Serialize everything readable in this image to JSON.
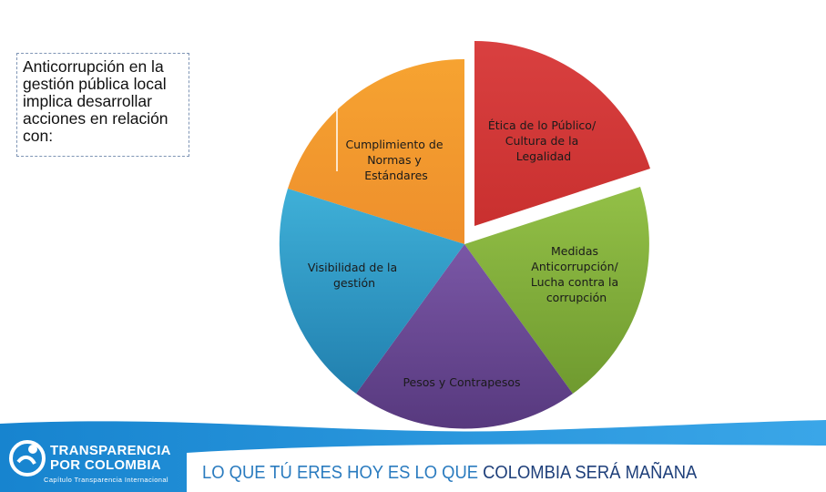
{
  "intro_text": "Anticorrupción en la gestión pública local implica desarrollar acciones en relación con:",
  "diagram": {
    "segments": [
      {
        "id": "cumplimiento",
        "lines": [
          "Cumplimiento de",
          "Normas y",
          "Estándares"
        ],
        "color": "#f29a2e"
      },
      {
        "id": "etica",
        "lines": [
          "Ética de lo Público/",
          "Cultura de la",
          "Legalidad"
        ],
        "color": "#d33b3b"
      },
      {
        "id": "medidas",
        "lines": [
          "Medidas",
          "Anticorrupción/",
          "Lucha contra la",
          "corrupción"
        ],
        "color": "#8bb53e"
      },
      {
        "id": "pesos",
        "lines": [
          "Pesos y Contrapesos"
        ],
        "color": "#6a4a94"
      },
      {
        "id": "visibilidad",
        "lines": [
          "Visibilidad de la",
          "gestión"
        ],
        "color": "#2f9ac8"
      }
    ]
  },
  "footer": {
    "org_name_line1": "TRANSPARENCIA",
    "org_name_line2": "POR COLOMBIA",
    "org_subtitle": "Capítulo Transparencia Internacional",
    "slogan_part1": "LO QUE TÚ ERES HOY ES LO QUE ",
    "slogan_part2": "COLOMBIA SERÁ MAÑANA",
    "band_color": "#1d8fd6"
  }
}
